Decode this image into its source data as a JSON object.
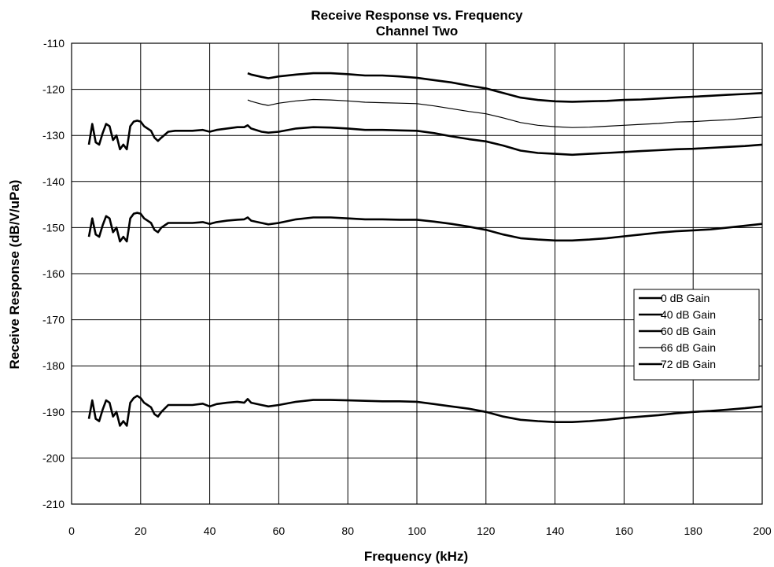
{
  "chart_data": {
    "type": "line",
    "title": "Receive Response vs. Frequency",
    "subtitle": "Channel Two",
    "xlabel": "Frequency (kHz)",
    "ylabel": "Receive Response (dB/V/uPa)",
    "xlim": [
      0,
      200
    ],
    "ylim": [
      -210,
      -110
    ],
    "xticks": [
      "0",
      "20",
      "40",
      "60",
      "80",
      "100",
      "120",
      "140",
      "160",
      "180",
      "200"
    ],
    "yticks": [
      "-110",
      "-120",
      "-130",
      "-140",
      "-150",
      "-160",
      "-170",
      "-180",
      "-190",
      "-200",
      "-210"
    ],
    "grid": true,
    "legend_position": "right",
    "series": [
      {
        "name": "0 dB Gain",
        "color": "#000000",
        "x": [
          5,
          6,
          7,
          8,
          9,
          10,
          11,
          12,
          13,
          14,
          15,
          16,
          17,
          18,
          19,
          20,
          21,
          22,
          23,
          24,
          25,
          26,
          28,
          30,
          32,
          35,
          38,
          40,
          42,
          45,
          48,
          50,
          51,
          52,
          55,
          57,
          60,
          65,
          70,
          75,
          80,
          85,
          90,
          95,
          100,
          105,
          110,
          115,
          120,
          125,
          130,
          135,
          140,
          145,
          150,
          155,
          160,
          165,
          170,
          175,
          180,
          185,
          190,
          195,
          200
        ],
        "y": [
          -191.5,
          -187.5,
          -191.5,
          -192,
          -189.5,
          -187.5,
          -188,
          -191,
          -190,
          -193,
          -192,
          -193,
          -188,
          -187,
          -186.5,
          -187,
          -188,
          -188.5,
          -189,
          -190.5,
          -191,
          -190,
          -188.5,
          -188.5,
          -188.5,
          -188.5,
          -188.2,
          -188.8,
          -188.3,
          -188,
          -187.8,
          -188,
          -187.2,
          -188,
          -188.5,
          -188.8,
          -188.5,
          -187.8,
          -187.4,
          -187.4,
          -187.5,
          -187.6,
          -187.7,
          -187.7,
          -187.8,
          -188.3,
          -188.8,
          -189.3,
          -190,
          -191,
          -191.7,
          -192,
          -192.2,
          -192.2,
          -192,
          -191.7,
          -191.3,
          -191,
          -190.7,
          -190.3,
          -190,
          -189.8,
          -189.5,
          -189.2,
          -188.8
        ]
      },
      {
        "name": "40 dB Gain",
        "color": "#000000",
        "x": [
          5,
          6,
          7,
          8,
          9,
          10,
          11,
          12,
          13,
          14,
          15,
          16,
          17,
          18,
          19,
          20,
          21,
          22,
          23,
          24,
          25,
          26,
          28,
          30,
          32,
          35,
          38,
          40,
          42,
          45,
          48,
          50,
          51,
          52,
          55,
          57,
          60,
          65,
          70,
          75,
          80,
          85,
          90,
          95,
          100,
          105,
          110,
          115,
          120,
          125,
          130,
          135,
          140,
          145,
          150,
          155,
          160,
          165,
          170,
          175,
          180,
          185,
          190,
          195,
          200
        ],
        "y": [
          -152,
          -148,
          -151.5,
          -152,
          -149.5,
          -147.5,
          -148,
          -151,
          -150,
          -153,
          -152,
          -153,
          -148,
          -147,
          -146.8,
          -147,
          -148,
          -148.5,
          -149,
          -150.5,
          -151,
          -150,
          -149,
          -149,
          -149,
          -149,
          -148.8,
          -149.2,
          -148.8,
          -148.5,
          -148.3,
          -148.2,
          -147.8,
          -148.5,
          -149,
          -149.3,
          -149,
          -148.2,
          -147.8,
          -147.8,
          -148,
          -148.2,
          -148.2,
          -148.3,
          -148.3,
          -148.7,
          -149.2,
          -149.8,
          -150.5,
          -151.5,
          -152.3,
          -152.6,
          -152.8,
          -152.8,
          -152.6,
          -152.3,
          -151.9,
          -151.5,
          -151.1,
          -150.8,
          -150.6,
          -150.4,
          -150,
          -149.6,
          -149.2
        ]
      },
      {
        "name": "60 dB Gain",
        "color": "#000000",
        "x": [
          5,
          6,
          7,
          8,
          9,
          10,
          11,
          12,
          13,
          14,
          15,
          16,
          17,
          18,
          19,
          20,
          21,
          22,
          23,
          24,
          25,
          26,
          28,
          30,
          32,
          35,
          38,
          40,
          42,
          45,
          48,
          50,
          51,
          52,
          55,
          57,
          60,
          65,
          70,
          75,
          80,
          85,
          90,
          95,
          100,
          105,
          110,
          115,
          120,
          125,
          130,
          135,
          140,
          145,
          150,
          155,
          160,
          165,
          170,
          175,
          180,
          185,
          190,
          195,
          200
        ],
        "y": [
          -132,
          -127.5,
          -131.5,
          -132,
          -129.5,
          -127.5,
          -128,
          -131,
          -130,
          -133,
          -132,
          -133,
          -128,
          -127,
          -126.8,
          -127,
          -128,
          -128.5,
          -129,
          -130.5,
          -131.2,
          -130.5,
          -129.2,
          -129,
          -129,
          -129,
          -128.8,
          -129.2,
          -128.8,
          -128.5,
          -128.2,
          -128.2,
          -127.8,
          -128.5,
          -129.2,
          -129.4,
          -129.2,
          -128.5,
          -128.2,
          -128.3,
          -128.5,
          -128.8,
          -128.8,
          -128.9,
          -129,
          -129.5,
          -130.2,
          -130.8,
          -131.3,
          -132.2,
          -133.3,
          -133.8,
          -134,
          -134.2,
          -134,
          -133.8,
          -133.6,
          -133.4,
          -133.2,
          -133,
          -132.9,
          -132.7,
          -132.5,
          -132.3,
          -132
        ]
      },
      {
        "name": "66 dB Gain",
        "color": "#000000",
        "x": [
          51,
          52,
          55,
          57,
          60,
          65,
          70,
          75,
          80,
          85,
          90,
          95,
          100,
          105,
          110,
          115,
          120,
          125,
          130,
          135,
          140,
          145,
          150,
          155,
          160,
          165,
          170,
          175,
          180,
          185,
          190,
          195,
          200
        ],
        "y": [
          -122.3,
          -122.6,
          -123.2,
          -123.5,
          -123,
          -122.5,
          -122.2,
          -122.3,
          -122.5,
          -122.8,
          -122.9,
          -123,
          -123.1,
          -123.6,
          -124.2,
          -124.8,
          -125.3,
          -126.2,
          -127.2,
          -127.8,
          -128.1,
          -128.3,
          -128.2,
          -128,
          -127.8,
          -127.6,
          -127.4,
          -127.1,
          -127,
          -126.8,
          -126.6,
          -126.3,
          -126
        ]
      },
      {
        "name": "72 dB Gain",
        "color": "#000000",
        "x": [
          51,
          52,
          55,
          57,
          60,
          65,
          70,
          75,
          80,
          85,
          90,
          95,
          100,
          105,
          110,
          115,
          120,
          125,
          130,
          135,
          140,
          145,
          150,
          155,
          160,
          165,
          170,
          175,
          180,
          185,
          190,
          195,
          200
        ],
        "y": [
          -116.5,
          -116.8,
          -117.3,
          -117.6,
          -117.2,
          -116.8,
          -116.5,
          -116.5,
          -116.7,
          -117,
          -117,
          -117.2,
          -117.5,
          -118,
          -118.5,
          -119.2,
          -119.8,
          -120.8,
          -121.8,
          -122.3,
          -122.6,
          -122.7,
          -122.6,
          -122.5,
          -122.3,
          -122.2,
          -122,
          -121.8,
          -121.6,
          -121.4,
          -121.2,
          -121,
          -120.8
        ]
      }
    ]
  }
}
